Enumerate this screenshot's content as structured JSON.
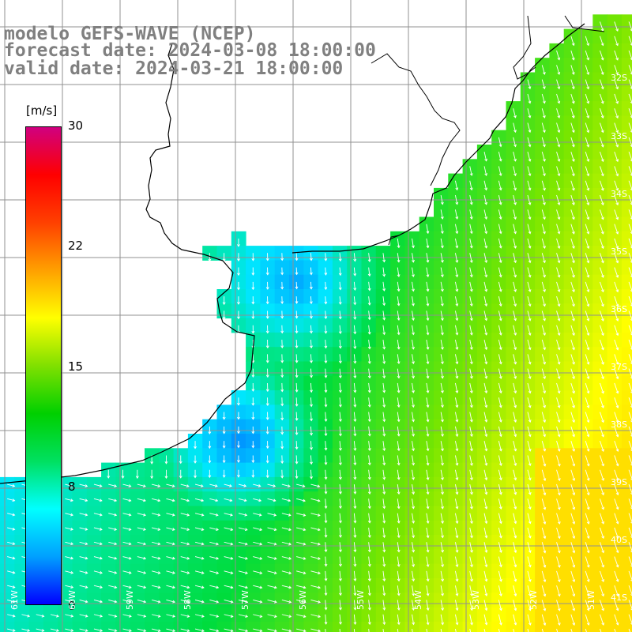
{
  "title": {
    "model": "modelo GEFS-WAVE (NCEP)",
    "forecast": "forecast date: 2024-03-08 18:00:00",
    "valid": "valid date: 2024-03-21 18:00:00"
  },
  "colorbar": {
    "unit": "[m/s]",
    "ticks": [
      "30",
      "22",
      "15",
      "8",
      "0"
    ],
    "min": 0,
    "max": 30,
    "colors": [
      "#0000ff",
      "#00a0ff",
      "#00ffff",
      "#00e060",
      "#00d000",
      "#80e000",
      "#ffff00",
      "#ffa000",
      "#ff4000",
      "#ff0000",
      "#d00080"
    ]
  },
  "lat_labels": [
    "32S",
    "33S",
    "34S",
    "35S",
    "36S",
    "37S",
    "38S",
    "39S",
    "40S",
    "41S"
  ],
  "lon_labels": [
    "61W",
    "60W",
    "59W",
    "58W",
    "57W",
    "56W",
    "55W",
    "54W",
    "53W",
    "52W",
    "51W"
  ],
  "map": {
    "ocean_low_color": "#0000ff",
    "land_color": "#ffffff",
    "grid_color": "#909090",
    "coast_color": "#000000",
    "arrow_color": "#ffffff"
  }
}
